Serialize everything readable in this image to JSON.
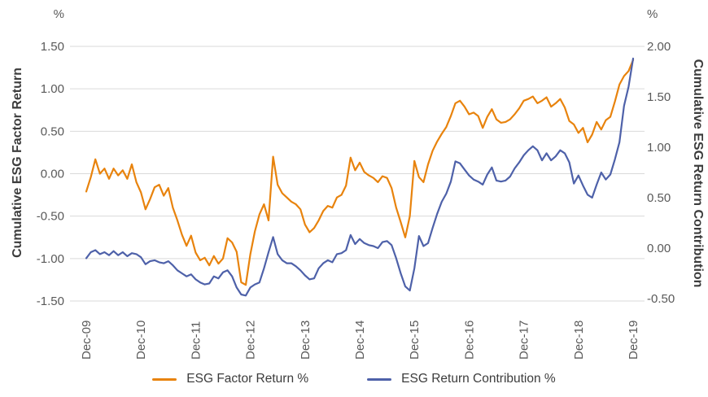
{
  "chart": {
    "left_axis": {
      "unit": "%",
      "title": "Cumulative ESG Factor Return",
      "ticks": [
        "1.50",
        "1.00",
        "0.50",
        "0.00",
        "-0.50",
        "-1.00",
        "-1.50"
      ],
      "min": -1.5,
      "max": 1.5
    },
    "right_axis": {
      "unit": "%",
      "title": "Cumulative ESG Return Contribution",
      "ticks": [
        "2.00",
        "1.50",
        "1.00",
        "0.50",
        "0.00",
        "-0.50"
      ],
      "min": -0.5,
      "max": 2.0
    },
    "x_ticks": [
      "Dec-09",
      "Dec-10",
      "Dec-11",
      "Dec-12",
      "Dec-13",
      "Dec-14",
      "Dec-15",
      "Dec-16",
      "Dec-17",
      "Dec-18",
      "Dec-19"
    ],
    "legend": [
      {
        "label": "ESG Factor Return %",
        "color": "#E8830D"
      },
      {
        "label": "ESG Return Contribution %",
        "color": "#4E61A9"
      }
    ],
    "colors": {
      "gridline": "#DADADA",
      "tick_text": "#595959",
      "title_text": "#3C3C3C",
      "background": "#FFFFFF"
    }
  },
  "chart_data": {
    "type": "line",
    "title": "",
    "x_unit": "month",
    "x_start": "Dec-09",
    "x_end": "Dec-19",
    "x_tick_every_months": 12,
    "grid": "horizontal",
    "legend_position": "bottom",
    "series": [
      {
        "name": "ESG Factor Return %",
        "axis": "left",
        "color": "#E8830D",
        "axis_range": [
          -1.5,
          1.5
        ],
        "values": [
          -0.21,
          -0.04,
          0.17,
          0.0,
          0.06,
          -0.06,
          0.06,
          -0.02,
          0.04,
          -0.06,
          0.11,
          -0.1,
          -0.22,
          -0.42,
          -0.3,
          -0.16,
          -0.13,
          -0.26,
          -0.17,
          -0.4,
          -0.55,
          -0.72,
          -0.85,
          -0.73,
          -0.93,
          -1.02,
          -0.99,
          -1.08,
          -0.97,
          -1.06,
          -1.0,
          -0.76,
          -0.81,
          -0.92,
          -1.28,
          -1.31,
          -0.95,
          -0.68,
          -0.48,
          -0.36,
          -0.55,
          0.2,
          -0.13,
          -0.23,
          -0.28,
          -0.33,
          -0.36,
          -0.42,
          -0.6,
          -0.69,
          -0.64,
          -0.55,
          -0.44,
          -0.38,
          -0.4,
          -0.28,
          -0.25,
          -0.14,
          0.19,
          0.04,
          0.13,
          0.02,
          -0.02,
          -0.05,
          -0.1,
          -0.03,
          -0.05,
          -0.17,
          -0.4,
          -0.57,
          -0.75,
          -0.5,
          0.15,
          -0.04,
          -0.1,
          0.11,
          0.27,
          0.38,
          0.47,
          0.55,
          0.68,
          0.83,
          0.86,
          0.79,
          0.7,
          0.72,
          0.68,
          0.54,
          0.67,
          0.76,
          0.64,
          0.6,
          0.61,
          0.64,
          0.7,
          0.77,
          0.86,
          0.88,
          0.91,
          0.83,
          0.86,
          0.9,
          0.79,
          0.83,
          0.88,
          0.78,
          0.62,
          0.58,
          0.48,
          0.54,
          0.37,
          0.46,
          0.61,
          0.52,
          0.63,
          0.67,
          0.85,
          1.05,
          1.15,
          1.21,
          1.34
        ]
      },
      {
        "name": "ESG Return Contribution %",
        "axis": "right",
        "color": "#4E61A9",
        "axis_range": [
          -0.5,
          2.0
        ],
        "values": [
          -0.1,
          -0.04,
          -0.02,
          -0.06,
          -0.04,
          -0.07,
          -0.03,
          -0.07,
          -0.04,
          -0.08,
          -0.05,
          -0.06,
          -0.09,
          -0.16,
          -0.13,
          -0.12,
          -0.14,
          -0.15,
          -0.13,
          -0.17,
          -0.22,
          -0.25,
          -0.28,
          -0.26,
          -0.31,
          -0.34,
          -0.36,
          -0.35,
          -0.28,
          -0.3,
          -0.24,
          -0.22,
          -0.28,
          -0.39,
          -0.46,
          -0.47,
          -0.39,
          -0.36,
          -0.34,
          -0.2,
          -0.04,
          0.11,
          -0.06,
          -0.12,
          -0.15,
          -0.15,
          -0.18,
          -0.22,
          -0.27,
          -0.31,
          -0.3,
          -0.2,
          -0.15,
          -0.12,
          -0.14,
          -0.06,
          -0.05,
          -0.02,
          0.13,
          0.04,
          0.09,
          0.05,
          0.03,
          0.02,
          0.0,
          0.06,
          0.07,
          0.03,
          -0.1,
          -0.25,
          -0.38,
          -0.42,
          -0.2,
          0.12,
          0.02,
          0.05,
          0.2,
          0.34,
          0.46,
          0.54,
          0.66,
          0.86,
          0.84,
          0.78,
          0.72,
          0.68,
          0.66,
          0.63,
          0.73,
          0.8,
          0.67,
          0.66,
          0.67,
          0.71,
          0.79,
          0.85,
          0.92,
          0.97,
          1.01,
          0.97,
          0.87,
          0.94,
          0.87,
          0.91,
          0.97,
          0.94,
          0.85,
          0.64,
          0.72,
          0.62,
          0.53,
          0.5,
          0.63,
          0.75,
          0.68,
          0.73,
          0.88,
          1.05,
          1.41,
          1.6,
          1.88
        ]
      }
    ]
  }
}
